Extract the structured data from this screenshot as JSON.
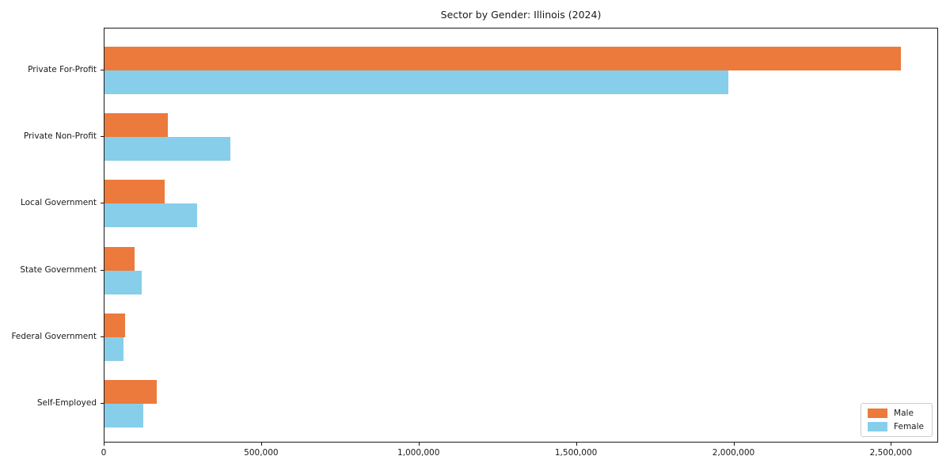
{
  "title": "Sector by Gender: Illinois (2024)",
  "chart_data": {
    "type": "bar",
    "orientation": "horizontal",
    "title": "Sector by Gender: Illinois (2024)",
    "categories": [
      "Private For-Profit",
      "Private Non-Profit",
      "Local Government",
      "State Government",
      "Federal Government",
      "Self-Employed"
    ],
    "series": [
      {
        "name": "Male",
        "color": "#ec7a3c",
        "values": [
          2530000,
          200000,
          190000,
          95000,
          65000,
          166000
        ]
      },
      {
        "name": "Female",
        "color": "#87ceeb",
        "values": [
          1980000,
          400000,
          295000,
          118000,
          60000,
          123000
        ]
      }
    ],
    "xlabel": "",
    "ylabel": "",
    "xlim": [
      0,
      2650000
    ],
    "x_ticks": [
      0,
      500000,
      1000000,
      1500000,
      2000000,
      2500000
    ],
    "x_tick_labels": [
      "0",
      "500,000",
      "1,000,000",
      "1,500,000",
      "2,000,000",
      "2,500,000"
    ],
    "legend_position": "lower right",
    "grid": false
  }
}
